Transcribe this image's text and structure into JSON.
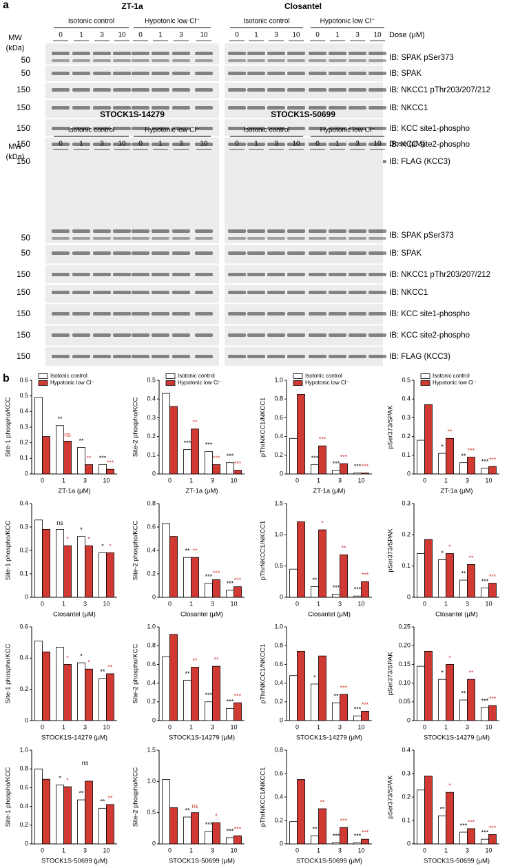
{
  "panel_a": {
    "label": "a",
    "conditions": [
      "Isotonic control",
      "Hypotonic low Cl⁻"
    ],
    "doses": [
      "0",
      "1",
      "3",
      "10"
    ],
    "dose_label": "Dose (μM)",
    "mw_label": [
      "MW",
      "(kDa)"
    ],
    "blocks": [
      {
        "drugs": [
          "ZT-1a",
          "Closantel"
        ],
        "rows": [
          {
            "mw": "50",
            "ib": "IB: SPAK pSer373"
          },
          {
            "mw": "50",
            "ib": "IB: SPAK"
          },
          {
            "mw": "150",
            "ib": "IB: NKCC1 pThr203/207/212"
          },
          {
            "mw": "150",
            "ib": "IB: NKCC1"
          },
          {
            "mw": "150",
            "ib": "IB: KCC site1-phospho"
          },
          {
            "mw": "150",
            "ib": "IB: KCC site2-phospho"
          },
          {
            "mw": "150",
            "ib": "IB: FLAG (KCC3)"
          }
        ]
      },
      {
        "drugs": [
          "STOCK1S-14279",
          "STOCK1S-50699"
        ],
        "rows": [
          {
            "mw": "50",
            "ib": "IB: SPAK pSer373"
          },
          {
            "mw": "50",
            "ib": "IB: SPAK"
          },
          {
            "mw": "150",
            "ib": "IB: NKCC1 pThr203/207/212"
          },
          {
            "mw": "150",
            "ib": "IB: NKCC1"
          },
          {
            "mw": "150",
            "ib": "IB: KCC site1-phospho"
          },
          {
            "mw": "150",
            "ib": "IB: KCC site2-phospho"
          },
          {
            "mw": "150",
            "ib": "IB: FLAG (KCC3)"
          }
        ]
      }
    ]
  },
  "panel_b_label": "b",
  "chart_data": [
    {
      "type": "bar",
      "y_label": "Site-1 phospho/KCC",
      "x_label": "ZT-1a (μM)",
      "categories": [
        "0",
        "1",
        "3",
        "10"
      ],
      "ylim": [
        0,
        0.6
      ],
      "yticks": [
        0,
        0.1,
        0.2,
        0.3,
        0.4,
        0.5,
        0.6
      ],
      "legend": true,
      "series": [
        {
          "name": "Isotonic control",
          "color": "#ffffff",
          "annotation_color": "#000000",
          "values": [
            0.49,
            0.31,
            0.17,
            0.06
          ],
          "annotations": [
            null,
            "**",
            "**",
            "***"
          ]
        },
        {
          "name": "Hypotonic low Cl⁻",
          "color": "#d03a33",
          "annotation_color": "#d03a33",
          "values": [
            0.24,
            0.21,
            0.06,
            0.03
          ],
          "annotations": [
            null,
            "ns",
            "**",
            "***"
          ]
        }
      ]
    },
    {
      "type": "bar",
      "y_label": "Site-2 phospho/KCC",
      "x_label": "ZT-1a (μM)",
      "categories": [
        "0",
        "1",
        "3",
        "10"
      ],
      "ylim": [
        0,
        0.5
      ],
      "yticks": [
        0,
        0.1,
        0.2,
        0.3,
        0.4,
        0.5
      ],
      "legend": true,
      "series": [
        {
          "name": "Isotonic control",
          "color": "#ffffff",
          "annotation_color": "#000000",
          "values": [
            0.43,
            0.13,
            0.12,
            0.06
          ],
          "annotations": [
            null,
            "***",
            "***",
            "***"
          ]
        },
        {
          "name": "Hypotonic low Cl⁻",
          "color": "#d03a33",
          "annotation_color": "#d03a33",
          "values": [
            0.36,
            0.24,
            0.05,
            0.02
          ],
          "annotations": [
            null,
            "**",
            "***",
            "***"
          ]
        }
      ]
    },
    {
      "type": "bar",
      "y_label": "pThrNKCC1/NKCC1",
      "x_label": "ZT-1a (μM)",
      "categories": [
        "0",
        "1",
        "3",
        "10"
      ],
      "ylim": [
        0,
        1.0
      ],
      "yticks": [
        0,
        0.2,
        0.4,
        0.6,
        0.8,
        {
          "value": 1.0,
          "label": "1.0"
        }
      ],
      "legend": true,
      "series": [
        {
          "name": "Isotonic control",
          "color": "#ffffff",
          "annotation_color": "#000000",
          "values": [
            0.38,
            0.1,
            0.04,
            0.01
          ],
          "annotations": [
            null,
            "***",
            "***",
            "***"
          ]
        },
        {
          "name": "Hypotonic low Cl⁻",
          "color": "#d03a33",
          "annotation_color": "#d03a33",
          "values": [
            0.85,
            0.3,
            0.11,
            0.01
          ],
          "annotations": [
            null,
            "***",
            "***",
            "***"
          ]
        }
      ]
    },
    {
      "type": "bar",
      "y_label": "pSer373/SPAK",
      "x_label": "ZT-1a (μM)",
      "categories": [
        "0",
        "1",
        "3",
        "10"
      ],
      "ylim": [
        0,
        0.5
      ],
      "yticks": [
        0,
        0.1,
        0.2,
        0.3,
        0.4,
        0.5
      ],
      "legend": true,
      "series": [
        {
          "name": "Isotonic control",
          "color": "#ffffff",
          "annotation_color": "#000000",
          "values": [
            0.18,
            0.11,
            0.06,
            0.03
          ],
          "annotations": [
            null,
            "*",
            "**",
            "***"
          ]
        },
        {
          "name": "Hypotonic low Cl⁻",
          "color": "#d03a33",
          "annotation_color": "#d03a33",
          "values": [
            0.37,
            0.19,
            0.09,
            0.04
          ],
          "annotations": [
            null,
            "**",
            "***",
            "***"
          ]
        }
      ]
    },
    {
      "type": "bar",
      "y_label": "Site-1 phospho/KCC",
      "x_label": "Closantel (μM)",
      "categories": [
        "0",
        "1",
        "3",
        "10"
      ],
      "ylim": [
        0,
        0.4
      ],
      "yticks": [
        0,
        0.1,
        0.2,
        0.3,
        0.4
      ],
      "legend": false,
      "series": [
        {
          "color": "#ffffff",
          "annotation_color": "#000000",
          "values": [
            0.33,
            0.29,
            0.26,
            0.19
          ],
          "annotations": [
            null,
            "ns",
            "*",
            "*"
          ]
        },
        {
          "color": "#d03a33",
          "annotation_color": "#d03a33",
          "values": [
            0.29,
            0.22,
            0.22,
            0.19
          ],
          "annotations": [
            null,
            "*",
            "*",
            "*"
          ]
        }
      ]
    },
    {
      "type": "bar",
      "y_label": "Site-2 phospho/KCC",
      "x_label": "Closantel (μM)",
      "categories": [
        "0",
        "1",
        "3",
        "10"
      ],
      "ylim": [
        0,
        0.8
      ],
      "yticks": [
        0,
        0.2,
        0.4,
        0.6,
        0.8
      ],
      "legend": false,
      "series": [
        {
          "color": "#ffffff",
          "annotation_color": "#000000",
          "values": [
            0.63,
            0.34,
            0.12,
            0.06
          ],
          "annotations": [
            null,
            "**",
            "***",
            "***"
          ]
        },
        {
          "color": "#d03a33",
          "annotation_color": "#d03a33",
          "values": [
            0.52,
            0.34,
            0.15,
            0.09
          ],
          "annotations": [
            null,
            "**",
            "***",
            "***"
          ]
        }
      ]
    },
    {
      "type": "bar",
      "y_label": "pThrNKCC1/NKCC1",
      "x_label": "Closantel (μM)",
      "categories": [
        "0",
        "1",
        "3",
        "10"
      ],
      "ylim": [
        0,
        1.5
      ],
      "yticks": [
        0,
        0.5,
        {
          "value": 1.0,
          "label": "1.0"
        },
        1.5
      ],
      "legend": false,
      "series": [
        {
          "color": "#ffffff",
          "annotation_color": "#000000",
          "values": [
            0.45,
            0.17,
            0.05,
            0.02
          ],
          "annotations": [
            null,
            "**",
            "***",
            "***"
          ]
        },
        {
          "color": "#d03a33",
          "annotation_color": "#d03a33",
          "values": [
            1.21,
            1.08,
            0.68,
            0.25
          ],
          "annotations": [
            null,
            "*",
            "**",
            "***"
          ]
        }
      ]
    },
    {
      "type": "bar",
      "y_label": "pSer373/SPAK",
      "x_label": "Closantel (μM)",
      "categories": [
        "0",
        "1",
        "3",
        "10"
      ],
      "ylim": [
        0,
        0.3
      ],
      "yticks": [
        0,
        0.1,
        0.2,
        0.3
      ],
      "legend": false,
      "series": [
        {
          "color": "#ffffff",
          "annotation_color": "#000000",
          "values": [
            0.14,
            0.12,
            0.055,
            0.03
          ],
          "annotations": [
            null,
            "*",
            "**",
            "***"
          ]
        },
        {
          "color": "#d03a33",
          "annotation_color": "#d03a33",
          "values": [
            0.185,
            0.14,
            0.105,
            0.045
          ],
          "annotations": [
            null,
            "*",
            "**",
            "***"
          ]
        }
      ]
    },
    {
      "type": "bar",
      "y_label": "Site-1 phospho/KCC",
      "x_label": "STOCK1S-14279 (μM)",
      "categories": [
        "0",
        "1",
        "3",
        "10"
      ],
      "ylim": [
        0,
        0.6
      ],
      "yticks": [
        0,
        0.2,
        0.4,
        0.6
      ],
      "legend": false,
      "series": [
        {
          "color": "#ffffff",
          "annotation_color": "#000000",
          "values": [
            0.51,
            0.47,
            0.37,
            0.27
          ],
          "annotations": [
            null,
            null,
            "*",
            "**"
          ]
        },
        {
          "color": "#d03a33",
          "annotation_color": "#d03a33",
          "values": [
            0.44,
            0.36,
            0.33,
            0.3
          ],
          "annotations": [
            null,
            "*",
            "*",
            "**"
          ]
        }
      ]
    },
    {
      "type": "bar",
      "y_label": "Site-2 phospho/KCC",
      "x_label": "STOCK1S-14279 (μM)",
      "categories": [
        "0",
        "1",
        "3",
        "10"
      ],
      "ylim": [
        0,
        1.0
      ],
      "yticks": [
        0,
        0.2,
        0.4,
        0.6,
        0.8,
        {
          "value": 1.0,
          "label": "1.0"
        }
      ],
      "legend": false,
      "series": [
        {
          "color": "#ffffff",
          "annotation_color": "#000000",
          "values": [
            0.68,
            0.43,
            0.2,
            0.13
          ],
          "annotations": [
            null,
            "**",
            "***",
            "***"
          ]
        },
        {
          "color": "#d03a33",
          "annotation_color": "#d03a33",
          "values": [
            0.92,
            0.57,
            0.58,
            0.19
          ],
          "annotations": [
            null,
            "**",
            "**",
            "***"
          ]
        }
      ]
    },
    {
      "type": "bar",
      "y_label": "pThrNKCC1/NKCC1",
      "x_label": "STOCK1S-14279 (μM)",
      "categories": [
        "0",
        "1",
        "3",
        "10"
      ],
      "ylim": [
        0,
        1.0
      ],
      "yticks": [
        0,
        0.2,
        0.4,
        0.6,
        0.8,
        {
          "value": 1.0,
          "label": "1.0"
        }
      ],
      "legend": false,
      "series": [
        {
          "color": "#ffffff",
          "annotation_color": "#000000",
          "values": [
            0.48,
            0.39,
            0.19,
            0.05
          ],
          "annotations": [
            null,
            "*",
            "**",
            "***"
          ]
        },
        {
          "color": "#d03a33",
          "annotation_color": "#d03a33",
          "values": [
            0.74,
            0.69,
            0.28,
            0.1
          ],
          "annotations": [
            null,
            null,
            "***",
            "***"
          ]
        }
      ]
    },
    {
      "type": "bar",
      "y_label": "pSer373/SPAK",
      "x_label": "STOCK1S-14279 (μM)",
      "categories": [
        "0",
        "1",
        "3",
        "10"
      ],
      "ylim": [
        0,
        0.25
      ],
      "yticks": [
        0,
        0.05,
        {
          "value": 0.1,
          "label": "0.10"
        },
        0.15,
        {
          "value": 0.2,
          "label": "0.20"
        },
        0.25
      ],
      "legend": false,
      "series": [
        {
          "color": "#ffffff",
          "annotation_color": "#000000",
          "values": [
            0.145,
            0.11,
            0.055,
            0.035
          ],
          "annotations": [
            null,
            "*",
            "**",
            "***"
          ]
        },
        {
          "color": "#d03a33",
          "annotation_color": "#d03a33",
          "values": [
            0.185,
            0.15,
            0.11,
            0.04
          ],
          "annotations": [
            null,
            "*",
            "**",
            "***"
          ]
        }
      ]
    },
    {
      "type": "bar",
      "y_label": "Site-1 phospho/KCC",
      "x_label": "STOCK1S-50699 (μM)",
      "categories": [
        "0",
        "1",
        "3",
        "10"
      ],
      "ylim": [
        0,
        1.0
      ],
      "yticks": [
        0,
        0.2,
        0.4,
        0.6,
        0.8,
        {
          "value": 1.0,
          "label": "1.0"
        }
      ],
      "legend": false,
      "series": [
        {
          "color": "#ffffff",
          "annotation_color": "#000000",
          "values": [
            0.8,
            0.63,
            0.47,
            0.38
          ],
          "annotations": [
            null,
            "*",
            "**",
            "**"
          ]
        },
        {
          "color": "#d03a33",
          "annotation_color": "#d03a33",
          "values": [
            0.69,
            0.61,
            0.67,
            0.42
          ],
          "annotations": [
            null,
            "*",
            {
              "text": "ns",
              "color": "#000000"
            },
            "**"
          ]
        }
      ]
    },
    {
      "type": "bar",
      "y_label": "Site-2 phospho/KCC",
      "x_label": "STOCK1S-50699 (μM)",
      "categories": [
        "0",
        "1",
        "3",
        "10"
      ],
      "ylim": [
        0,
        1.5
      ],
      "yticks": [
        0,
        0.5,
        {
          "value": 1.0,
          "label": "1.0"
        },
        1.5
      ],
      "legend": false,
      "series": [
        {
          "color": "#ffffff",
          "annotation_color": "#000000",
          "values": [
            1.03,
            0.43,
            0.2,
            0.1
          ],
          "annotations": [
            null,
            "**",
            "***",
            "***"
          ]
        },
        {
          "color": "#d03a33",
          "annotation_color": "#d03a33",
          "values": [
            0.58,
            0.5,
            0.34,
            0.13
          ],
          "annotations": [
            null,
            "ns",
            "*",
            "***"
          ]
        }
      ]
    },
    {
      "type": "bar",
      "y_label": "pThrNKCC1/NKCC1",
      "x_label": "STOCK1S-50699 (μM)",
      "categories": [
        "0",
        "1",
        "3",
        "10"
      ],
      "ylim": [
        0,
        0.8
      ],
      "yticks": [
        0,
        0.2,
        0.4,
        0.6,
        0.8
      ],
      "legend": false,
      "series": [
        {
          "color": "#ffffff",
          "annotation_color": "#000000",
          "values": [
            0.19,
            0.07,
            0.01,
            0.01
          ],
          "annotations": [
            null,
            "**",
            "***",
            "***"
          ]
        },
        {
          "color": "#d03a33",
          "annotation_color": "#d03a33",
          "values": [
            0.55,
            0.3,
            0.14,
            0.04
          ],
          "annotations": [
            null,
            "**",
            "***",
            "***"
          ]
        }
      ]
    },
    {
      "type": "bar",
      "y_label": "pSer373/SPAK",
      "x_label": "STOCK1S-50699 (μM)",
      "categories": [
        "0",
        "1",
        "3",
        "10"
      ],
      "ylim": [
        0,
        0.4
      ],
      "yticks": [
        0,
        0.1,
        0.2,
        0.3,
        0.4
      ],
      "legend": false,
      "series": [
        {
          "color": "#ffffff",
          "annotation_color": "#000000",
          "values": [
            0.23,
            0.12,
            0.05,
            0.02
          ],
          "annotations": [
            null,
            "**",
            "***",
            "***"
          ]
        },
        {
          "color": "#d03a33",
          "annotation_color": "#d03a33",
          "values": [
            0.29,
            0.22,
            0.065,
            0.04
          ],
          "annotations": [
            null,
            "*",
            "***",
            "***"
          ]
        }
      ]
    }
  ]
}
